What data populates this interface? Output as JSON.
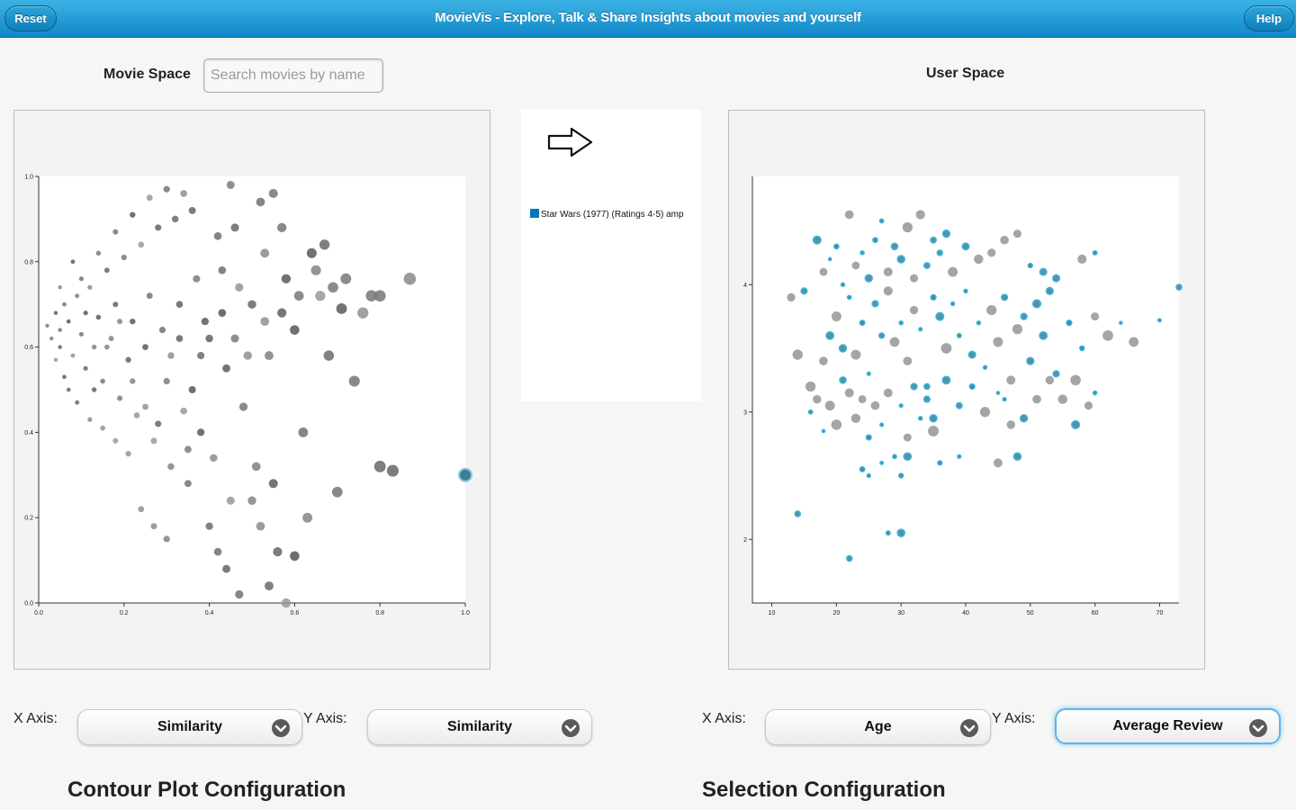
{
  "header": {
    "title": "MovieVis - Explore, Talk & Share Insights about movies and yourself",
    "reset_label": "Reset",
    "help_label": "Help"
  },
  "movie_space": {
    "label": "Movie Space",
    "search_placeholder": "Search movies by name"
  },
  "user_space": {
    "label": "User Space"
  },
  "selection_list": {
    "icon": "right-arrow-icon",
    "items": [
      {
        "label": "Star Wars (1977) (Ratings 4-5) amp",
        "color": "#0077bb"
      }
    ]
  },
  "controls": {
    "x_axis_label": "X Axis:",
    "y_axis_label": "Y Axis:",
    "movie_x": "Similarity",
    "movie_y": "Similarity",
    "user_x": "Age",
    "user_y": "Average Review"
  },
  "contour_title": "Contour Plot Configuration",
  "selection_title": "Selection Configuration",
  "colors": {
    "header": "#1a90cc",
    "movie_dot": "#777777",
    "user_highlight": "#2aa6d2",
    "user_other": "#8a8a8a"
  },
  "chart_data": [
    {
      "type": "scatter",
      "name": "movie-space",
      "xlim": [
        0,
        1
      ],
      "ylim": [
        0,
        1
      ],
      "xticks": [
        "0.0",
        "0.2",
        "0.4",
        "0.6",
        "0.8",
        "1.0"
      ],
      "yticks": [
        "0.0",
        "0.2",
        "0.4",
        "0.6",
        "0.8",
        "1.0"
      ],
      "grid": false,
      "highlight": [
        {
          "x": 1.0,
          "y": 0.3
        }
      ],
      "points": [
        [
          0.02,
          0.65
        ],
        [
          0.03,
          0.62
        ],
        [
          0.04,
          0.68
        ],
        [
          0.05,
          0.6
        ],
        [
          0.06,
          0.7
        ],
        [
          0.05,
          0.64
        ],
        [
          0.07,
          0.66
        ],
        [
          0.08,
          0.58
        ],
        [
          0.09,
          0.72
        ],
        [
          0.1,
          0.63
        ],
        [
          0.11,
          0.55
        ],
        [
          0.12,
          0.74
        ],
        [
          0.13,
          0.6
        ],
        [
          0.14,
          0.67
        ],
        [
          0.15,
          0.52
        ],
        [
          0.16,
          0.78
        ],
        [
          0.17,
          0.62
        ],
        [
          0.18,
          0.7
        ],
        [
          0.19,
          0.48
        ],
        [
          0.2,
          0.81
        ],
        [
          0.21,
          0.57
        ],
        [
          0.22,
          0.66
        ],
        [
          0.23,
          0.44
        ],
        [
          0.24,
          0.84
        ],
        [
          0.25,
          0.6
        ],
        [
          0.26,
          0.72
        ],
        [
          0.27,
          0.38
        ],
        [
          0.28,
          0.88
        ],
        [
          0.29,
          0.64
        ],
        [
          0.3,
          0.52
        ],
        [
          0.31,
          0.32
        ],
        [
          0.32,
          0.9
        ],
        [
          0.33,
          0.7
        ],
        [
          0.34,
          0.45
        ],
        [
          0.35,
          0.28
        ],
        [
          0.36,
          0.92
        ],
        [
          0.37,
          0.76
        ],
        [
          0.38,
          0.58
        ],
        [
          0.4,
          0.62
        ],
        [
          0.41,
          0.34
        ],
        [
          0.42,
          0.86
        ],
        [
          0.43,
          0.78
        ],
        [
          0.44,
          0.55
        ],
        [
          0.45,
          0.24
        ],
        [
          0.46,
          0.88
        ],
        [
          0.47,
          0.74
        ],
        [
          0.48,
          0.46
        ],
        [
          0.5,
          0.7
        ],
        [
          0.51,
          0.32
        ],
        [
          0.52,
          0.94
        ],
        [
          0.53,
          0.82
        ],
        [
          0.54,
          0.58
        ],
        [
          0.55,
          0.28
        ],
        [
          0.56,
          0.12
        ],
        [
          0.57,
          0.88
        ],
        [
          0.58,
          0.76
        ],
        [
          0.6,
          0.64
        ],
        [
          0.62,
          0.4
        ],
        [
          0.63,
          0.2
        ],
        [
          0.65,
          0.78
        ],
        [
          0.66,
          0.72
        ],
        [
          0.68,
          0.58
        ],
        [
          0.7,
          0.26
        ],
        [
          0.72,
          0.76
        ],
        [
          0.74,
          0.52
        ],
        [
          0.76,
          0.68
        ],
        [
          0.78,
          0.72
        ],
        [
          0.8,
          0.72
        ],
        [
          0.8,
          0.32
        ],
        [
          0.83,
          0.31
        ],
        [
          0.87,
          0.76
        ],
        [
          0.06,
          0.53
        ],
        [
          0.09,
          0.47
        ],
        [
          0.12,
          0.43
        ],
        [
          0.15,
          0.41
        ],
        [
          0.18,
          0.38
        ],
        [
          0.21,
          0.35
        ],
        [
          0.24,
          0.22
        ],
        [
          0.27,
          0.18
        ],
        [
          0.3,
          0.15
        ],
        [
          0.35,
          0.36
        ],
        [
          0.38,
          0.4
        ],
        [
          0.4,
          0.18
        ],
        [
          0.42,
          0.12
        ],
        [
          0.44,
          0.08
        ],
        [
          0.47,
          0.02
        ],
        [
          0.5,
          0.24
        ],
        [
          0.52,
          0.18
        ],
        [
          0.54,
          0.04
        ],
        [
          0.58,
          0.0
        ],
        [
          0.6,
          0.11
        ],
        [
          0.1,
          0.76
        ],
        [
          0.14,
          0.82
        ],
        [
          0.18,
          0.87
        ],
        [
          0.22,
          0.91
        ],
        [
          0.26,
          0.95
        ],
        [
          0.3,
          0.97
        ],
        [
          0.34,
          0.96
        ],
        [
          0.45,
          0.98
        ],
        [
          0.55,
          0.96
        ],
        [
          0.08,
          0.8
        ],
        [
          0.05,
          0.74
        ],
        [
          0.04,
          0.57
        ],
        [
          0.07,
          0.5
        ],
        [
          0.11,
          0.68
        ],
        [
          0.13,
          0.5
        ],
        [
          0.16,
          0.6
        ],
        [
          0.19,
          0.66
        ],
        [
          0.22,
          0.52
        ],
        [
          0.25,
          0.46
        ],
        [
          0.28,
          0.42
        ],
        [
          0.31,
          0.58
        ],
        [
          0.33,
          0.62
        ],
        [
          0.36,
          0.5
        ],
        [
          0.39,
          0.66
        ],
        [
          0.43,
          0.68
        ],
        [
          0.46,
          0.62
        ],
        [
          0.49,
          0.58
        ],
        [
          0.53,
          0.66
        ],
        [
          0.57,
          0.68
        ],
        [
          0.61,
          0.72
        ],
        [
          0.64,
          0.82
        ],
        [
          0.67,
          0.84
        ],
        [
          0.69,
          0.74
        ],
        [
          0.71,
          0.69
        ]
      ]
    },
    {
      "type": "scatter",
      "name": "user-space",
      "xlabel": "Age",
      "ylabel": "Average Review",
      "xlim": [
        7,
        73
      ],
      "ylim": [
        1.5,
        4.85
      ],
      "xticks": [
        "10",
        "20",
        "30",
        "40",
        "50",
        "60",
        "70"
      ],
      "yticks": [
        "2",
        "3",
        "4"
      ],
      "grid": false,
      "points": [
        [
          18,
          3.4
        ],
        [
          19,
          3.6
        ],
        [
          20,
          3.75
        ],
        [
          21,
          3.5
        ],
        [
          22,
          3.9
        ],
        [
          23,
          3.45
        ],
        [
          24,
          3.7
        ],
        [
          25,
          3.3
        ],
        [
          26,
          3.85
        ],
        [
          27,
          3.6
        ],
        [
          28,
          3.95
        ],
        [
          29,
          3.55
        ],
        [
          30,
          3.7
        ],
        [
          31,
          3.4
        ],
        [
          32,
          3.8
        ],
        [
          33,
          3.65
        ],
        [
          34,
          3.2
        ],
        [
          35,
          3.9
        ],
        [
          36,
          3.75
        ],
        [
          37,
          3.5
        ],
        [
          38,
          3.85
        ],
        [
          39,
          3.6
        ],
        [
          40,
          3.95
        ],
        [
          41,
          3.45
        ],
        [
          42,
          3.7
        ],
        [
          43,
          3.35
        ],
        [
          44,
          3.8
        ],
        [
          45,
          3.55
        ],
        [
          46,
          3.9
        ],
        [
          47,
          3.25
        ],
        [
          48,
          3.65
        ],
        [
          49,
          3.75
        ],
        [
          50,
          3.4
        ],
        [
          51,
          3.85
        ],
        [
          52,
          3.6
        ],
        [
          53,
          3.95
        ],
        [
          54,
          3.3
        ],
        [
          56,
          3.7
        ],
        [
          58,
          3.5
        ],
        [
          60,
          3.75
        ],
        [
          62,
          3.6
        ],
        [
          64,
          3.7
        ],
        [
          66,
          3.55
        ],
        [
          70,
          3.72
        ],
        [
          73,
          3.98
        ],
        [
          15,
          3.95
        ],
        [
          16,
          3.2
        ],
        [
          17,
          4.35
        ],
        [
          18,
          4.1
        ],
        [
          19,
          4.2
        ],
        [
          20,
          4.3
        ],
        [
          21,
          4.0
        ],
        [
          22,
          4.55
        ],
        [
          23,
          4.15
        ],
        [
          24,
          4.25
        ],
        [
          25,
          4.05
        ],
        [
          26,
          4.35
        ],
        [
          27,
          4.5
        ],
        [
          28,
          4.1
        ],
        [
          29,
          4.3
        ],
        [
          30,
          4.2
        ],
        [
          31,
          4.45
        ],
        [
          32,
          4.05
        ],
        [
          33,
          4.55
        ],
        [
          34,
          4.15
        ],
        [
          35,
          4.35
        ],
        [
          36,
          4.25
        ],
        [
          37,
          4.4
        ],
        [
          38,
          4.1
        ],
        [
          40,
          4.3
        ],
        [
          42,
          4.2
        ],
        [
          44,
          4.25
        ],
        [
          46,
          4.35
        ],
        [
          48,
          4.4
        ],
        [
          50,
          4.15
        ],
        [
          52,
          4.1
        ],
        [
          54,
          4.05
        ],
        [
          58,
          4.2
        ],
        [
          60,
          4.25
        ],
        [
          13,
          3.9
        ],
        [
          14,
          3.45
        ],
        [
          16,
          3.0
        ],
        [
          17,
          3.1
        ],
        [
          18,
          2.85
        ],
        [
          19,
          3.05
        ],
        [
          20,
          2.9
        ],
        [
          21,
          3.25
        ],
        [
          22,
          3.15
        ],
        [
          23,
          2.95
        ],
        [
          24,
          3.1
        ],
        [
          25,
          2.8
        ],
        [
          26,
          3.05
        ],
        [
          27,
          2.9
        ],
        [
          28,
          3.15
        ],
        [
          29,
          2.65
        ],
        [
          30,
          3.05
        ],
        [
          31,
          2.8
        ],
        [
          32,
          3.2
        ],
        [
          33,
          2.95
        ],
        [
          34,
          3.1
        ],
        [
          35,
          2.85
        ],
        [
          37,
          3.25
        ],
        [
          39,
          3.05
        ],
        [
          41,
          3.2
        ],
        [
          43,
          3.0
        ],
        [
          45,
          3.15
        ],
        [
          47,
          2.9
        ],
        [
          49,
          2.95
        ],
        [
          51,
          3.1
        ],
        [
          53,
          3.25
        ],
        [
          55,
          3.1
        ],
        [
          57,
          3.25
        ],
        [
          59,
          3.05
        ],
        [
          24,
          2.55
        ],
        [
          25,
          2.5
        ],
        [
          27,
          2.6
        ],
        [
          30,
          2.5
        ],
        [
          31,
          2.65
        ],
        [
          36,
          2.6
        ],
        [
          39,
          2.65
        ],
        [
          45,
          2.6
        ],
        [
          48,
          2.65
        ],
        [
          22,
          1.85
        ],
        [
          28,
          2.05
        ],
        [
          30,
          2.05
        ],
        [
          14,
          2.2
        ],
        [
          60,
          3.15
        ],
        [
          57,
          2.9
        ],
        [
          35,
          2.95
        ],
        [
          46,
          3.1
        ]
      ]
    }
  ]
}
